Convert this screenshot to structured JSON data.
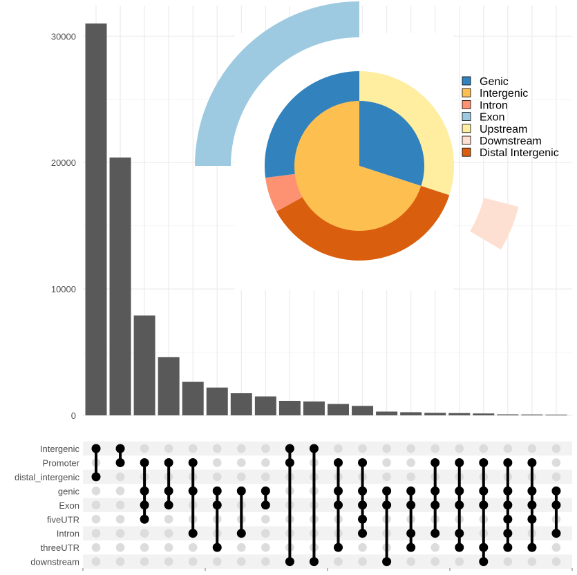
{
  "chart_data": [
    {
      "type": "bar",
      "title": "",
      "xlabel": "",
      "ylabel": "",
      "ylim": [
        0,
        31500
      ],
      "yticks": [
        0,
        10000,
        20000,
        30000
      ],
      "ytick_labels": [
        "0",
        "10000",
        "20000",
        "30000"
      ],
      "values": [
        31000,
        20400,
        7900,
        4600,
        2650,
        2200,
        1750,
        1500,
        1150,
        1100,
        900,
        750,
        300,
        250,
        200,
        180,
        150,
        80,
        70,
        60
      ],
      "bar_color": "#595959"
    },
    {
      "type": "table",
      "kind": "upset-matrix",
      "sets": [
        "Intergenic",
        "Promoter",
        "distal_intergenic",
        "genic",
        "Exon",
        "fiveUTR",
        "Intron",
        "threeUTR",
        "downstream"
      ],
      "combinations": [
        [
          "Intergenic",
          "distal_intergenic"
        ],
        [
          "Intergenic",
          "Promoter"
        ],
        [
          "Promoter",
          "genic",
          "Exon",
          "fiveUTR"
        ],
        [
          "Promoter",
          "genic",
          "Exon"
        ],
        [
          "Promoter",
          "genic",
          "Intron"
        ],
        [
          "genic",
          "Exon",
          "threeUTR"
        ],
        [
          "genic",
          "Intron"
        ],
        [
          "genic",
          "Exon"
        ],
        [
          "Intergenic",
          "Promoter",
          "downstream"
        ],
        [
          "Intergenic",
          "downstream"
        ],
        [
          "Promoter",
          "genic",
          "Exon",
          "threeUTR"
        ],
        [
          "Promoter",
          "genic",
          "Exon",
          "fiveUTR",
          "Intron"
        ],
        [
          "genic",
          "Exon",
          "downstream"
        ],
        [
          "genic",
          "Exon",
          "Intron",
          "threeUTR"
        ],
        [
          "Promoter",
          "genic",
          "Exon",
          "Intron"
        ],
        [
          "Promoter",
          "genic",
          "Exon",
          "Intron",
          "threeUTR"
        ],
        [
          "Promoter",
          "genic",
          "Exon",
          "threeUTR",
          "downstream"
        ],
        [
          "Promoter",
          "genic",
          "Exon",
          "fiveUTR",
          "Intron",
          "threeUTR"
        ],
        [
          "Promoter",
          "genic",
          "Exon",
          "fiveUTR",
          "threeUTR"
        ],
        [
          "genic",
          "Exon",
          "Intron"
        ]
      ]
    },
    {
      "type": "pie",
      "kind": "vennpie",
      "legend": [
        "Genic",
        "Intergenic",
        "Intron",
        "Exon",
        "Upstream",
        "Downstream",
        "Distal Intergenic"
      ],
      "colors": [
        "#3182bd",
        "#fdbf50",
        "#fc9272",
        "#9ecae1",
        "#ffeda0",
        "#fee0d2",
        "#d95f0e"
      ],
      "inner_ring": [
        {
          "label": "Genic",
          "percent": 30
        },
        {
          "label": "Intergenic",
          "percent": 70
        }
      ],
      "middle_ring": [
        {
          "label": "Upstream",
          "percent": 30
        },
        {
          "label": "Distal Intergenic",
          "percent": 37
        },
        {
          "label": "Intron",
          "percent": 6
        },
        {
          "label": "Genic",
          "percent": 27
        }
      ],
      "outer_ring": [
        {
          "label": "Downstream",
          "start_percent": 29,
          "end_percent": 33.5
        },
        {
          "label": "Exon",
          "start_percent": 75,
          "end_percent": 100
        }
      ]
    }
  ]
}
